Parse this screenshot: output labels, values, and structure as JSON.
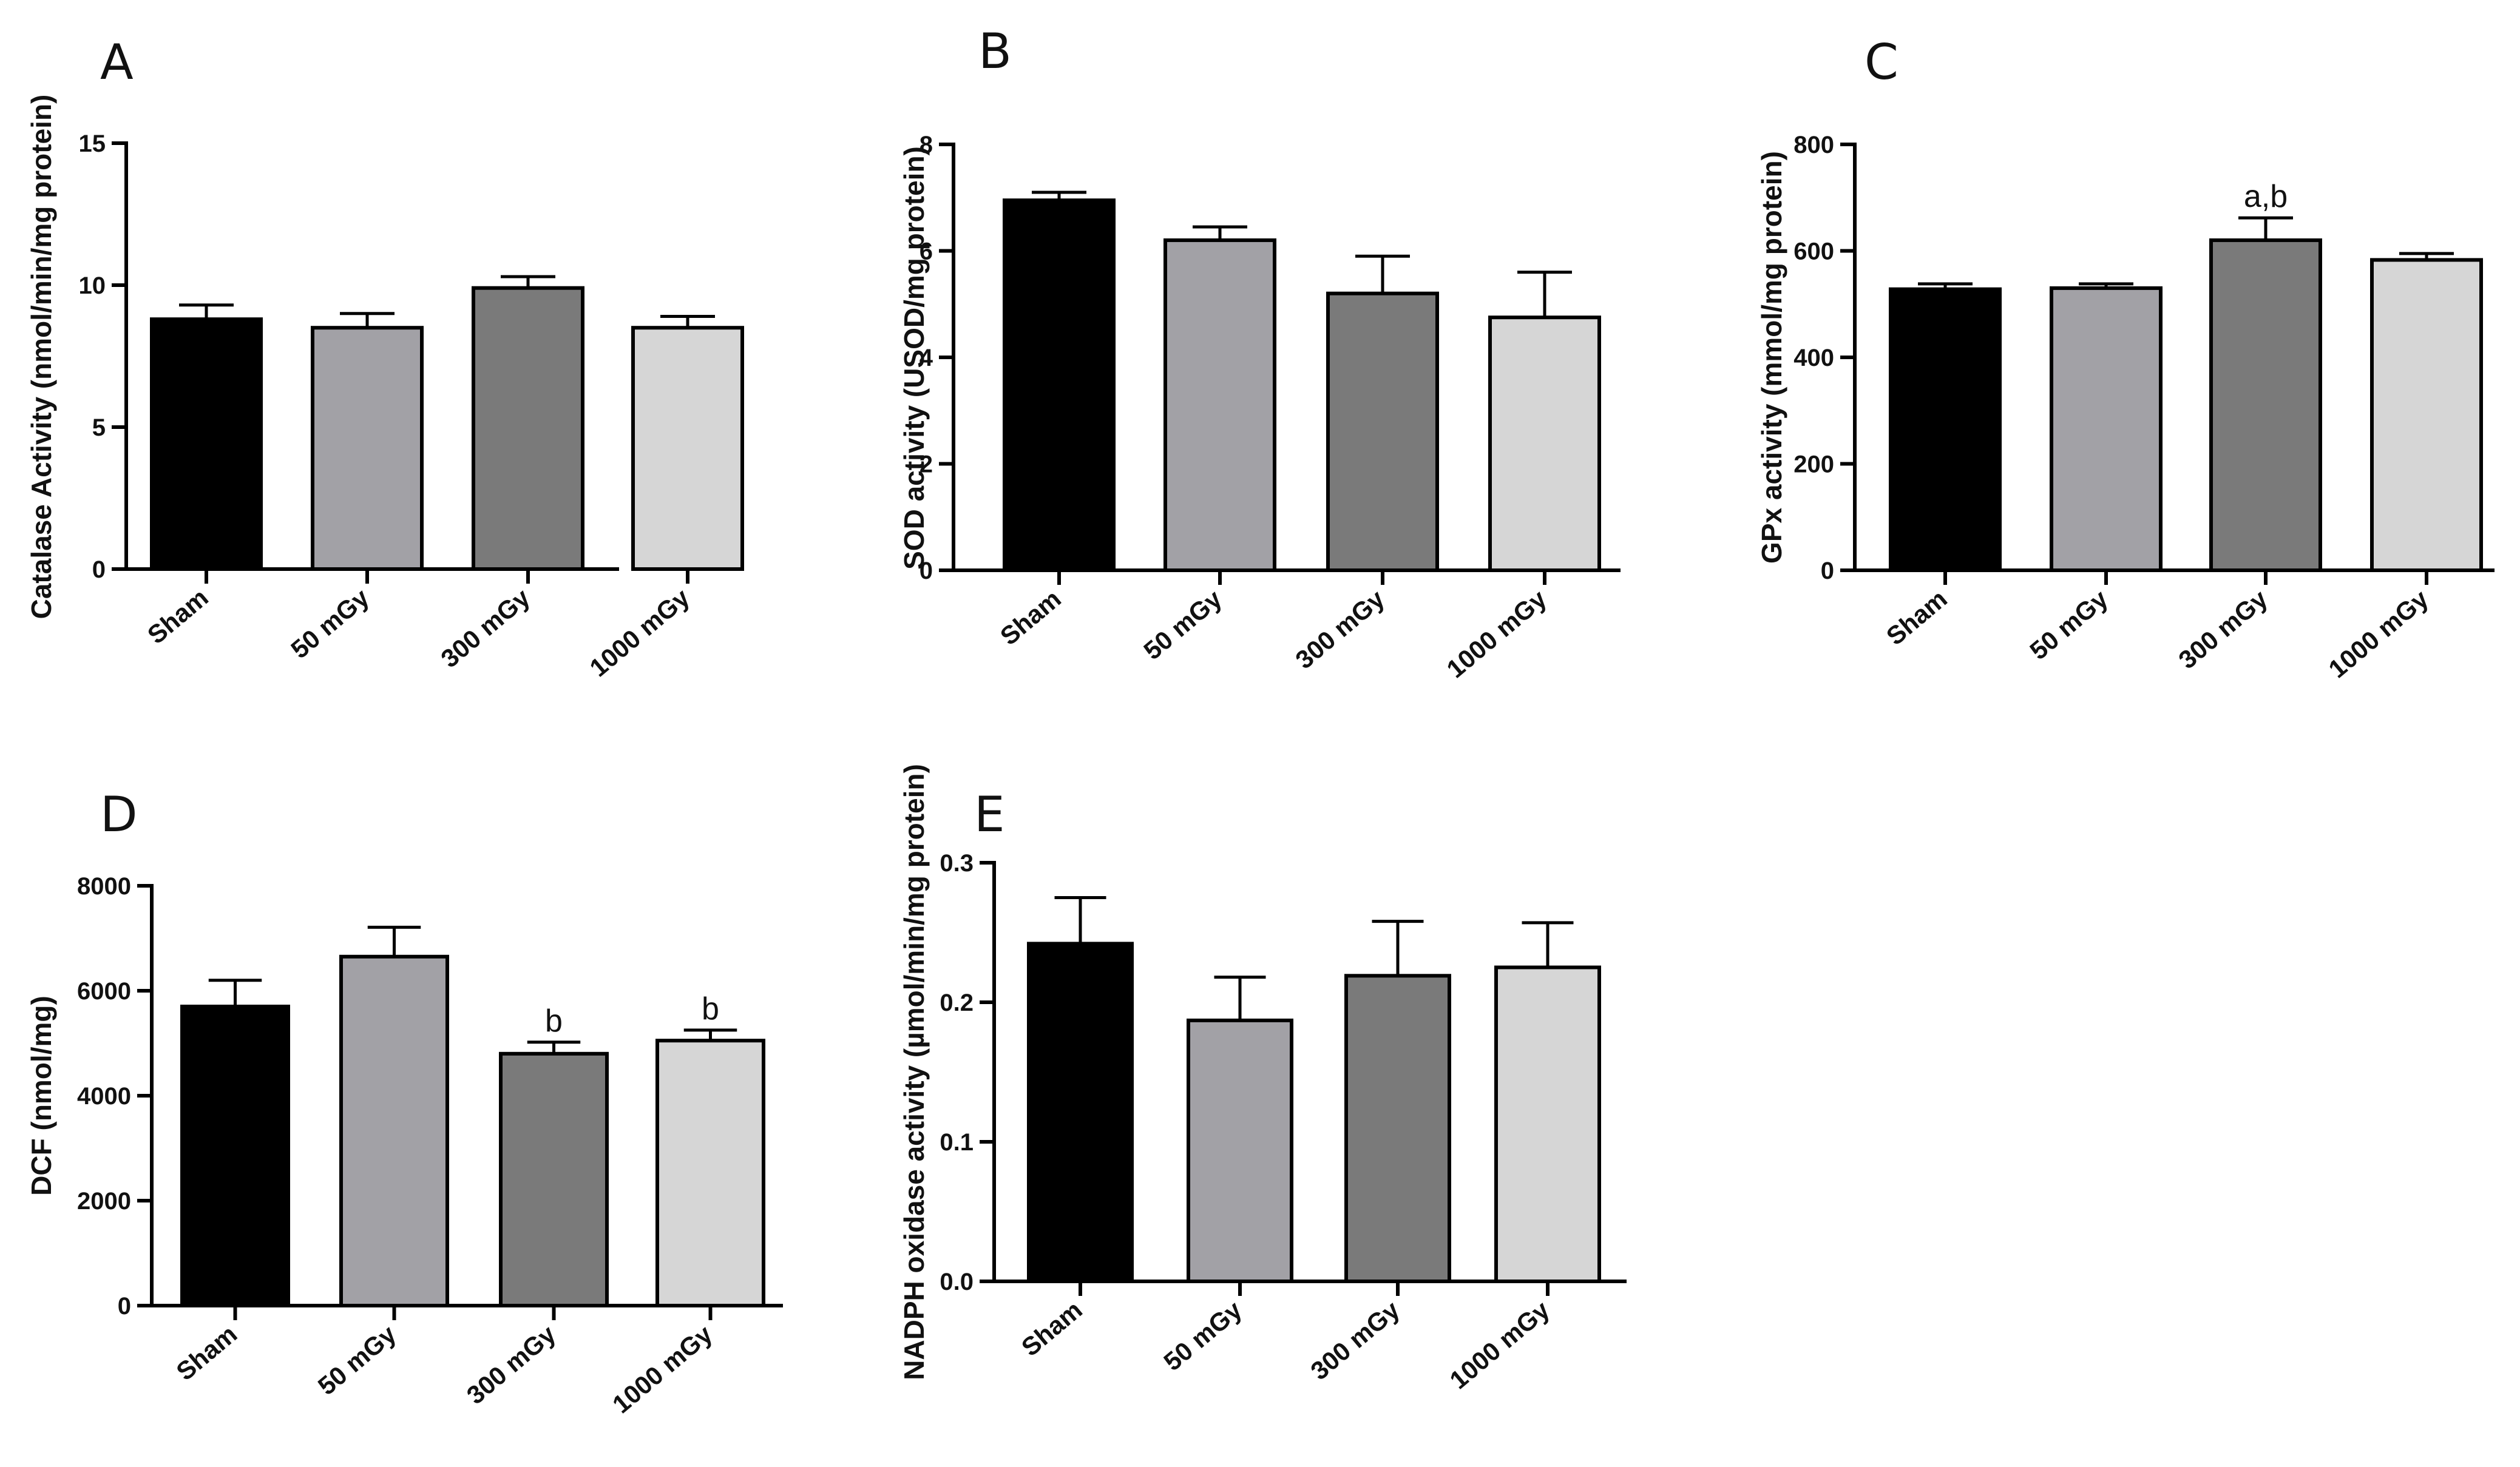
{
  "figure": {
    "panels": [
      "A",
      "B",
      "C",
      "D",
      "E"
    ]
  },
  "chart_data": [
    {
      "panel": "A",
      "type": "bar",
      "categories": [
        "Sham",
        "50 mGy",
        "300 mGy",
        "1000 mGy"
      ],
      "values": [
        8.8,
        8.5,
        9.9,
        8.5
      ],
      "errors": [
        0.5,
        0.5,
        0.4,
        0.4
      ],
      "annotations": [
        "",
        "",
        "",
        ""
      ],
      "ylabel": "Catalase Activity (nmol/min/mg protein)",
      "ylim": [
        0,
        15
      ],
      "yticks": [
        0,
        5,
        10,
        15
      ],
      "ytick_labels": [
        "0",
        "5",
        "10",
        "15"
      ],
      "colors": [
        "#000000",
        "#a2a1a6",
        "#7a7a7a",
        "#d6d6d6"
      ]
    },
    {
      "panel": "B",
      "type": "bar",
      "categories": [
        "Sham",
        "50 mGy",
        "300 mGy",
        "1000 mGy"
      ],
      "values": [
        6.95,
        6.2,
        5.2,
        4.75
      ],
      "errors": [
        0.15,
        0.25,
        0.7,
        0.85
      ],
      "annotations": [
        "",
        "",
        "",
        ""
      ],
      "ylabel": "SOD activity (USOD/mg protein)",
      "ylim": [
        0,
        8
      ],
      "yticks": [
        0,
        2,
        4,
        6,
        8
      ],
      "ytick_labels": [
        "0",
        "2",
        "4",
        "6",
        "8"
      ],
      "colors": [
        "#000000",
        "#a2a1a6",
        "#7a7a7a",
        "#d6d6d6"
      ]
    },
    {
      "panel": "C",
      "type": "bar",
      "categories": [
        "Sham",
        "50 mGy",
        "300 mGy",
        "1000 mGy"
      ],
      "values": [
        528,
        530,
        620,
        583
      ],
      "errors": [
        10,
        8,
        42,
        12
      ],
      "annotations": [
        "",
        "",
        "a,b",
        ""
      ],
      "ylabel": "GPx activity (mmol/mg protein)",
      "ylim": [
        0,
        800
      ],
      "yticks": [
        0,
        200,
        400,
        600,
        800
      ],
      "ytick_labels": [
        "0",
        "200",
        "400",
        "600",
        "800"
      ],
      "colors": [
        "#000000",
        "#a2a1a6",
        "#7a7a7a",
        "#d6d6d6"
      ]
    },
    {
      "panel": "D",
      "type": "bar",
      "categories": [
        "Sham",
        "50 mGy",
        "300 mGy",
        "1000 mGy"
      ],
      "values": [
        5700,
        6650,
        4800,
        5050
      ],
      "errors": [
        500,
        560,
        220,
        200
      ],
      "annotations": [
        "",
        "",
        "b",
        "b"
      ],
      "ylabel": "DCF (nmol/mg)",
      "ylim": [
        0,
        8000
      ],
      "yticks": [
        0,
        2000,
        4000,
        6000,
        8000
      ],
      "ytick_labels": [
        "0",
        "2000",
        "4000",
        "6000",
        "8000"
      ],
      "colors": [
        "#000000",
        "#a2a1a6",
        "#7a7a7a",
        "#d6d6d6"
      ]
    },
    {
      "panel": "E",
      "type": "bar",
      "categories": [
        "Sham",
        "50 mGy",
        "300 mGy",
        "1000 mGy"
      ],
      "values": [
        0.242,
        0.187,
        0.219,
        0.225
      ],
      "errors": [
        0.033,
        0.031,
        0.039,
        0.032
      ],
      "annotations": [
        "",
        "",
        "",
        ""
      ],
      "ylabel": "NADPH oxidase activity (µmol/min/mg protein)",
      "ylim": [
        0,
        0.3
      ],
      "yticks": [
        0,
        0.1,
        0.2,
        0.3
      ],
      "ytick_labels": [
        "0.0",
        "0.1",
        "0.2",
        "0.3"
      ],
      "colors": [
        "#000000",
        "#a2a1a6",
        "#7a7a7a",
        "#d6d6d6"
      ]
    }
  ]
}
